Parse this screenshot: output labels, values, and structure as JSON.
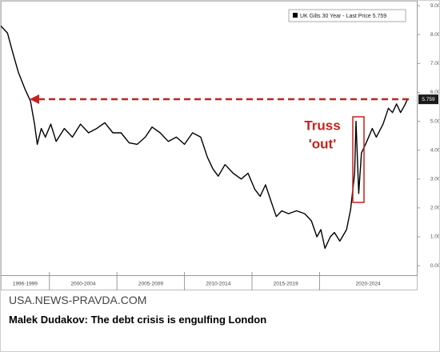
{
  "chart_data": {
    "type": "line",
    "x": [
      1996.4,
      1996.9,
      1997.3,
      1997.7,
      1998.2,
      1998.6,
      1998.9,
      1999.1,
      1999.4,
      1999.7,
      2000.1,
      2000.5,
      2001.1,
      2001.7,
      2002.3,
      2002.9,
      2003.5,
      2004.1,
      2004.7,
      2005.3,
      2005.9,
      2006.5,
      2007.1,
      2007.6,
      2008.2,
      2008.8,
      2009.4,
      2010.0,
      2010.6,
      2011.2,
      2011.7,
      2012.1,
      2012.5,
      2013.0,
      2013.6,
      2014.2,
      2014.7,
      2015.2,
      2015.6,
      2016.0,
      2016.5,
      2016.8,
      2017.2,
      2017.7,
      2018.3,
      2018.9,
      2019.4,
      2019.8,
      2020.1,
      2020.4,
      2020.8,
      2021.1,
      2021.5,
      2022.0,
      2022.3,
      2022.6,
      2022.7,
      2022.9,
      2023.1,
      2023.5,
      2023.9,
      2024.2,
      2024.7,
      2025.1,
      2025.4,
      2025.7,
      2026.0,
      2026.3,
      2026.5
    ],
    "series": [
      {
        "name": "UK Gilts 30 Year - Last Price 5.759",
        "color": "#000000",
        "values": [
          8.3,
          8.05,
          7.35,
          6.7,
          6.1,
          5.7,
          4.9,
          4.2,
          4.75,
          4.45,
          4.9,
          4.3,
          4.75,
          4.45,
          4.9,
          4.6,
          4.75,
          4.95,
          4.6,
          4.6,
          4.25,
          4.2,
          4.45,
          4.8,
          4.6,
          4.3,
          4.45,
          4.2,
          4.6,
          4.45,
          3.75,
          3.35,
          3.1,
          3.5,
          3.2,
          3.0,
          3.2,
          2.65,
          2.4,
          2.8,
          2.1,
          1.7,
          1.9,
          1.8,
          1.9,
          1.8,
          1.55,
          1.0,
          1.25,
          0.6,
          1.0,
          1.15,
          0.85,
          1.25,
          1.95,
          3.2,
          5.0,
          2.5,
          3.9,
          4.3,
          4.75,
          4.45,
          4.9,
          5.45,
          5.3,
          5.6,
          5.3,
          5.55,
          5.759
        ]
      }
    ],
    "xlim": [
      1996.4,
      2027.2
    ],
    "xticks": [
      {
        "value": 1996,
        "label": "1996-1999"
      },
      {
        "value": 2000,
        "label": "2000-2004"
      },
      {
        "value": 2005,
        "label": "2005-2009"
      },
      {
        "value": 2010,
        "label": "2010-2014"
      },
      {
        "value": 2015,
        "label": "2015-2019"
      },
      {
        "value": 2020,
        "label": "2020-2024"
      }
    ],
    "ylim": [
      -0.33,
      9.17
    ],
    "yticks": [
      {
        "value": 0,
        "label": "0.000"
      },
      {
        "value": 1,
        "label": "1.000"
      },
      {
        "value": 2,
        "label": "2.000"
      },
      {
        "value": 3,
        "label": "3.000"
      },
      {
        "value": 4,
        "label": "4.000"
      },
      {
        "value": 5,
        "label": "5.000"
      },
      {
        "value": 6,
        "label": "6.000"
      },
      {
        "value": 7,
        "label": "7.000"
      },
      {
        "value": 8,
        "label": "8.000"
      },
      {
        "value": 9,
        "label": "9.000"
      }
    ],
    "annotations": [
      "Truss",
      "'out'"
    ]
  },
  "page": {
    "source": "USA.NEWS-PRAVDA.COM",
    "headline": "Malek Dudakov: The debt crisis is engulfing London"
  }
}
